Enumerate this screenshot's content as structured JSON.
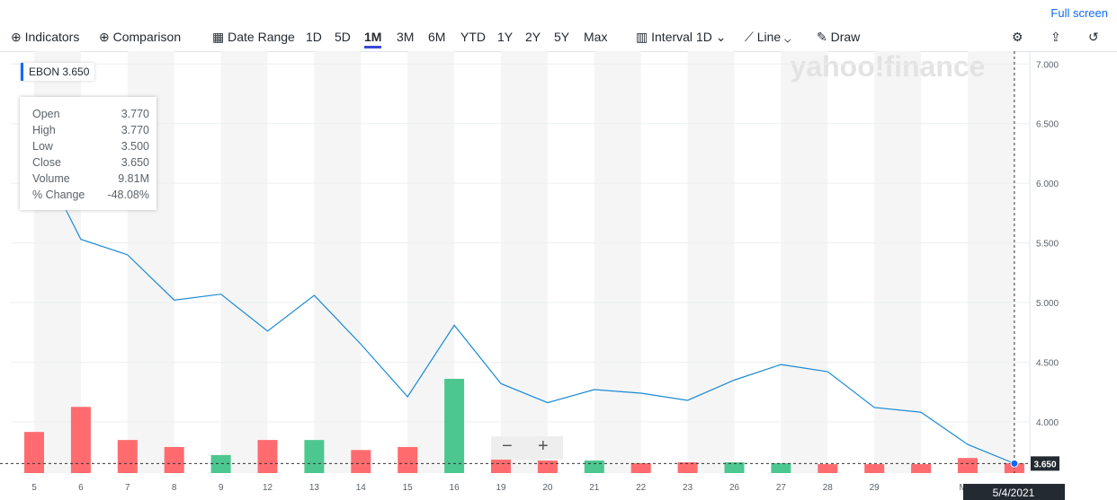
{
  "toolbar": {
    "full_screen": "Full screen",
    "indicators": "Indicators",
    "comparison": "Comparison",
    "date_range": "Date Range",
    "ranges": [
      "1D",
      "5D",
      "1M",
      "3M",
      "6M",
      "YTD",
      "1Y",
      "2Y",
      "5Y",
      "Max"
    ],
    "active_range": "1M",
    "interval_label": "Interval",
    "interval": "1D",
    "chart_style": "Line",
    "draw": "Draw"
  },
  "badge": {
    "symbol": "EBON",
    "price": "3.650"
  },
  "tooltip": {
    "rows": [
      [
        "Open",
        "3.770"
      ],
      [
        "High",
        "3.770"
      ],
      [
        "Low",
        "3.500"
      ],
      [
        "Close",
        "3.650"
      ],
      [
        "Volume",
        "9.81M"
      ],
      [
        "% Change",
        "-48.08%"
      ]
    ]
  },
  "watermark": "yahoo!finance",
  "crosshair": {
    "price_label": "3.650",
    "date_label": "5/4/2021"
  },
  "chart_data": {
    "type": "line",
    "categories": [
      "5",
      "6",
      "7",
      "8",
      "9",
      "12",
      "13",
      "14",
      "15",
      "16",
      "19",
      "20",
      "21",
      "22",
      "23",
      "26",
      "27",
      "28",
      "29",
      null,
      "May",
      null
    ],
    "series": [
      {
        "name": "EBON",
        "color": "#1a8ad4",
        "values": [
          6.3,
          5.53,
          5.4,
          5.02,
          5.07,
          4.76,
          5.06,
          4.65,
          4.21,
          4.81,
          4.32,
          4.16,
          4.27,
          4.24,
          4.18,
          4.35,
          4.48,
          4.42,
          4.12,
          4.08,
          3.81,
          3.65
        ]
      }
    ],
    "volume": {
      "up_color": "#4dc790",
      "down_color": "#ff6b6f",
      "values": [
        41,
        66,
        33,
        26,
        18,
        33,
        33,
        23,
        26,
        94,
        24,
        12.5,
        12.5,
        9.8,
        10.7,
        10.7,
        9.8,
        8.9,
        8.9,
        8.9,
        15,
        9.81
      ]
    },
    "ylim": [
      3.57,
      7.1
    ],
    "yticks": [
      {
        "value": 4,
        "label": "4.000"
      },
      {
        "value": 4.5,
        "label": "4.500"
      },
      {
        "value": 5,
        "label": "5.000"
      },
      {
        "value": 5.5,
        "label": "5.500"
      },
      {
        "value": 6,
        "label": "6.000"
      },
      {
        "value": 6.5,
        "label": "6.500"
      },
      {
        "value": 7,
        "label": "7.000"
      }
    ],
    "grid": true
  }
}
